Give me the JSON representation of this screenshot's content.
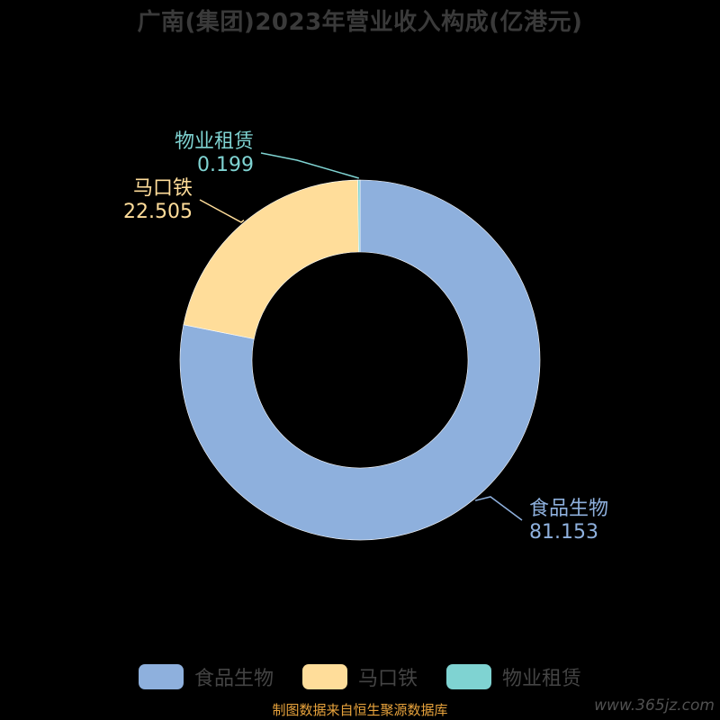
{
  "title": "广南(集团)2023年营业收入构成(亿港元)",
  "chart_data": {
    "type": "pie",
    "donut": true,
    "title": "广南(集团)2023年营业收入构成(亿港元)",
    "series": [
      {
        "name": "食品生物",
        "value": 81.153,
        "value_label": "81.153",
        "color": "#8eb0dd"
      },
      {
        "name": "马口铁",
        "value": 22.505,
        "value_label": "22.505",
        "color": "#ffdd9a"
      },
      {
        "name": "物业租赁",
        "value": 0.199,
        "value_label": "0.199",
        "color": "#7fd3d2"
      }
    ],
    "legend_position": "bottom"
  },
  "legend": {
    "items": [
      {
        "label": "食品生物",
        "color": "#8eb0dd"
      },
      {
        "label": "马口铁",
        "color": "#ffdd9a"
      },
      {
        "label": "物业租赁",
        "color": "#7fd3d2"
      }
    ]
  },
  "footer": {
    "source": "制图数据来自恒生聚源数据库",
    "watermark": "www.365jz.com"
  }
}
